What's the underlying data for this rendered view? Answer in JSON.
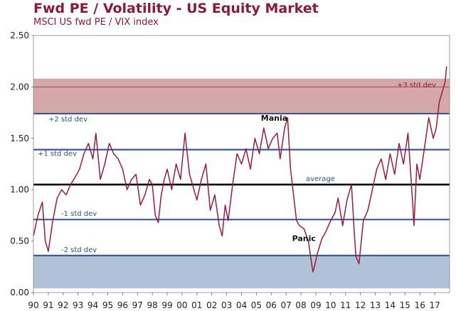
{
  "chart_data": {
    "type": "line",
    "title": "Fwd PE / Volatility - US Equity Market",
    "subtitle": "MSCI US fwd PE / VIX index",
    "ylim": [
      0,
      2.5
    ],
    "yticks": [
      "0.00",
      "0.50",
      "1.00",
      "1.50",
      "2.00",
      "2.50"
    ],
    "xticks": [
      "90",
      "91",
      "92",
      "93",
      "94",
      "95",
      "96",
      "97",
      "98",
      "99",
      "00",
      "01",
      "02",
      "03",
      "04",
      "05",
      "06",
      "07",
      "08",
      "09",
      "10",
      "11",
      "12",
      "13",
      "14",
      "15",
      "16",
      "17"
    ],
    "reference_lines": [
      {
        "label": "+2 std dev",
        "value": 1.74
      },
      {
        "label": "+1 std dev",
        "value": 1.39
      },
      {
        "label": "average",
        "value": 1.05
      },
      {
        "label": "-1 std dev",
        "value": 0.71
      },
      {
        "label": "-2 std dev",
        "value": 0.36
      }
    ],
    "bands": [
      {
        "label": "+3 std dev",
        "from": 1.74,
        "to": 2.08,
        "color": "#d4a8a8"
      },
      {
        "label": "",
        "from": 0.04,
        "to": 0.36,
        "color": "#b2c2d6"
      }
    ],
    "annotations": [
      {
        "text": "Mania",
        "x": 2006.2,
        "y": 1.67
      },
      {
        "text": "Panic",
        "x": 2008.2,
        "y": 0.5
      }
    ],
    "series": [
      {
        "color": "#9b1b3f",
        "x": [
          1990.0,
          1990.3,
          1990.6,
          1990.8,
          1991.0,
          1991.3,
          1991.6,
          1991.9,
          1992.2,
          1992.5,
          1992.8,
          1993.1,
          1993.4,
          1993.7,
          1994.0,
          1994.2,
          1994.5,
          1994.8,
          1995.1,
          1995.4,
          1995.7,
          1996.0,
          1996.3,
          1996.6,
          1996.9,
          1997.2,
          1997.5,
          1997.8,
          1998.0,
          1998.2,
          1998.4,
          1998.6,
          1998.8,
          1999.0,
          1999.3,
          1999.6,
          1999.9,
          2000.2,
          2000.5,
          2000.8,
          2001.0,
          2001.3,
          2001.6,
          2001.9,
          2002.2,
          2002.5,
          2002.7,
          2002.9,
          2003.1,
          2003.4,
          2003.7,
          2004.0,
          2004.3,
          2004.6,
          2004.9,
          2005.2,
          2005.5,
          2005.8,
          2006.1,
          2006.4,
          2006.6,
          2006.9,
          2007.1,
          2007.3,
          2007.5,
          2007.7,
          2007.9,
          2008.2,
          2008.5,
          2008.7,
          2008.8,
          2008.9,
          2009.1,
          2009.4,
          2009.7,
          2010.0,
          2010.3,
          2010.5,
          2010.8,
          2011.1,
          2011.4,
          2011.6,
          2011.7,
          2011.9,
          2012.2,
          2012.5,
          2012.8,
          2013.1,
          2013.4,
          2013.7,
          2014.0,
          2014.3,
          2014.6,
          2014.9,
          2015.2,
          2015.5,
          2015.6,
          2015.8,
          2016.0,
          2016.3,
          2016.6,
          2016.9,
          2017.1,
          2017.3,
          2017.5,
          2017.7,
          2017.8
        ],
        "values": [
          0.55,
          0.75,
          0.88,
          0.5,
          0.4,
          0.7,
          0.92,
          1.0,
          0.95,
          1.05,
          1.12,
          1.2,
          1.35,
          1.45,
          1.3,
          1.55,
          1.1,
          1.25,
          1.45,
          1.35,
          1.3,
          1.2,
          1.0,
          1.1,
          1.15,
          0.85,
          0.95,
          1.1,
          1.05,
          0.75,
          0.68,
          0.95,
          1.1,
          1.2,
          1.0,
          1.25,
          1.1,
          1.55,
          1.15,
          1.0,
          0.9,
          1.1,
          1.25,
          0.8,
          0.95,
          0.65,
          0.55,
          0.85,
          0.7,
          1.05,
          1.35,
          1.25,
          1.4,
          1.2,
          1.5,
          1.35,
          1.6,
          1.4,
          1.5,
          1.55,
          1.3,
          1.6,
          1.7,
          1.2,
          0.95,
          0.7,
          0.65,
          0.62,
          0.5,
          0.3,
          0.2,
          0.25,
          0.38,
          0.52,
          0.6,
          0.7,
          0.78,
          0.92,
          0.65,
          0.9,
          1.05,
          0.55,
          0.35,
          0.28,
          0.7,
          0.8,
          1.0,
          1.2,
          1.3,
          1.1,
          1.35,
          1.15,
          1.45,
          1.25,
          1.55,
          0.9,
          0.65,
          1.25,
          1.1,
          1.4,
          1.7,
          1.5,
          1.6,
          1.85,
          1.95,
          2.05,
          2.2
        ]
      }
    ]
  }
}
